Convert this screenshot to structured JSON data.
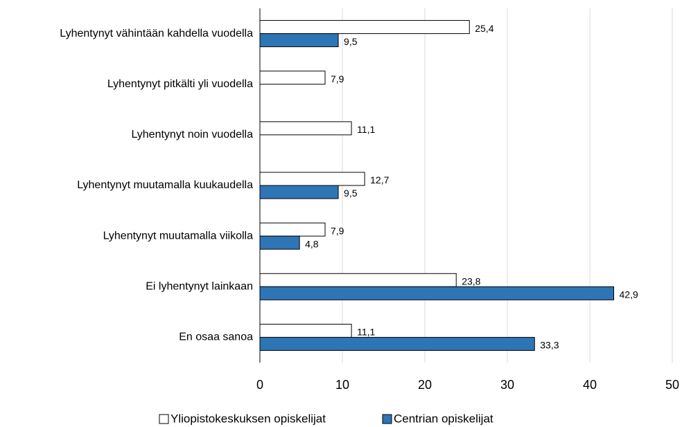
{
  "chart_data": {
    "type": "bar",
    "orientation": "horizontal",
    "categories": [
      "Lyhentynyt vähintään kahdella vuodella",
      "Lyhentynyt pitkälti yli vuodella",
      "Lyhentynyt noin vuodella",
      "Lyhentynyt muutamalla kuukaudella",
      "Lyhentynyt muutamalla viikolla",
      "Ei lyhentynyt lainkaan",
      "En osaa sanoa"
    ],
    "series": [
      {
        "name": "Yliopistokeskuksen opiskelijat",
        "color": "#ffffff",
        "values": [
          25.4,
          7.9,
          11.1,
          12.7,
          7.9,
          23.8,
          11.1
        ],
        "value_labels": [
          "25,4",
          "7,9",
          "11,1",
          "12,7",
          "7,9",
          "23,8",
          "11,1"
        ]
      },
      {
        "name": "Centrian opiskelijat",
        "color": "#2e75b6",
        "values": [
          9.5,
          null,
          null,
          9.5,
          4.8,
          42.9,
          33.3
        ],
        "value_labels": [
          "9,5",
          null,
          null,
          "9,5",
          "4,8",
          "42,9",
          "33,3"
        ]
      }
    ],
    "xlim": [
      0,
      50
    ],
    "xticks": [
      0,
      10,
      20,
      30,
      40,
      50
    ],
    "grid": true,
    "legend": "bottom"
  }
}
